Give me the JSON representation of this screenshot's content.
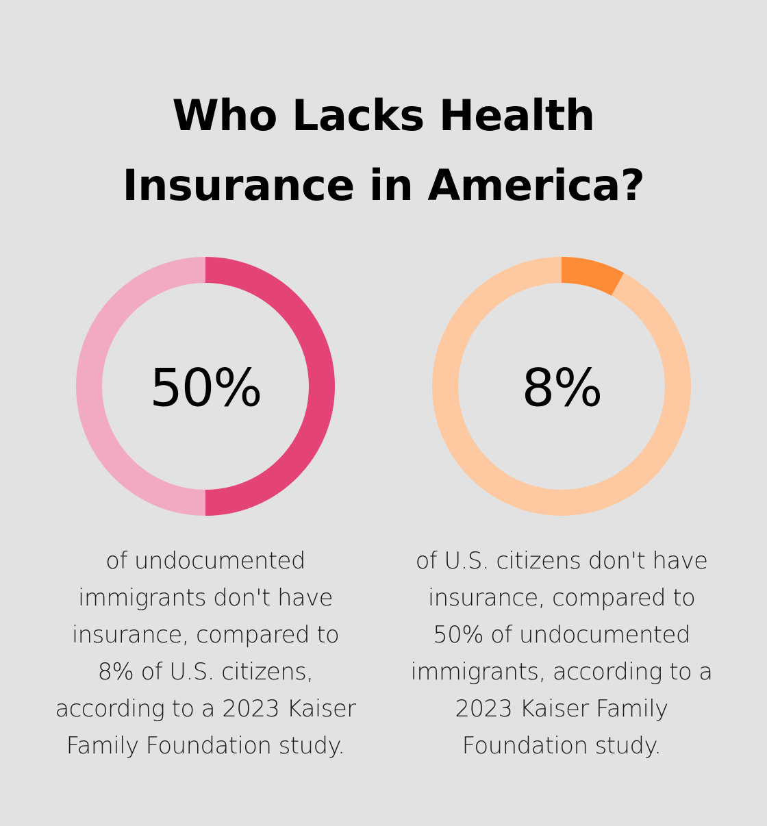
{
  "title_lines": [
    "Who Lacks Health",
    "Insurance in America?"
  ],
  "chart_data": [
    {
      "type": "pie",
      "value": 50,
      "max": 100,
      "label": "50%",
      "caption_lines": [
        "of undocumented",
        "immigrants don't have",
        "insurance, compared to",
        "8% of U.S. citizens,",
        "according to a 2023 Kaiser",
        "Family Foundation study."
      ],
      "colors": {
        "fill": "#e34475",
        "track": "#f2aac3"
      }
    },
    {
      "type": "pie",
      "value": 8,
      "max": 100,
      "label": "8%",
      "caption_lines": [
        "of U.S. citizens don't have",
        "insurance, compared to",
        "50% of undocumented",
        "immigrants, according to a",
        "2023 Kaiser Family",
        "Foundation study."
      ],
      "colors": {
        "fill": "#fe8c36",
        "track": "#fec8a1"
      }
    }
  ]
}
